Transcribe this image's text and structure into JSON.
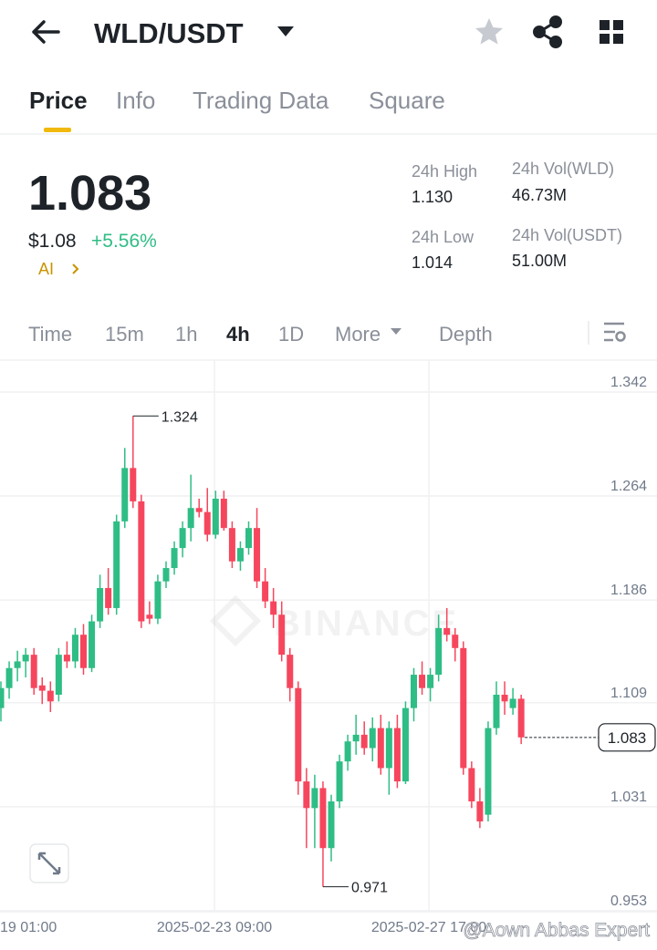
{
  "header": {
    "pair": "WLD/USDT"
  },
  "tabs": [
    "Price",
    "Info",
    "Trading Data",
    "Square"
  ],
  "summary": {
    "price": "1.083",
    "fiat_price": "$1.08",
    "change": "+5.56%",
    "ai": "AI"
  },
  "stats": [
    {
      "label": "24h High",
      "value": "1.130"
    },
    {
      "label": "24h Vol(WLD)",
      "value": "46.73M"
    },
    {
      "label": "24h Low",
      "value": "1.014"
    },
    {
      "label": "24h Vol(USDT)",
      "value": "51.00M"
    }
  ],
  "intervals": [
    "Time",
    "15m",
    "1h",
    "4h",
    "1D",
    "More",
    "Depth"
  ],
  "chart_data": {
    "type": "candlestick",
    "up_color": "#2ebd85",
    "down_color": "#f6465d",
    "open": [
      1.105,
      1.12,
      1.135,
      1.14,
      1.145,
      1.122,
      1.118,
      1.115,
      1.145,
      1.14,
      1.16,
      1.135,
      1.17,
      1.195,
      1.18,
      1.245,
      1.285,
      1.26,
      1.175,
      1.172,
      1.2,
      1.21,
      1.225,
      1.24,
      1.255,
      1.252,
      1.235,
      1.262,
      1.24,
      1.215,
      1.225,
      1.24,
      1.2,
      1.185,
      1.175,
      1.145,
      1.12,
      1.05,
      1.03,
      1.045,
      1.0,
      1.035,
      1.065,
      1.08,
      1.085,
      1.075,
      1.09,
      1.06,
      1.09,
      1.05,
      1.105,
      1.13,
      1.12,
      1.13,
      1.165,
      1.16,
      1.15,
      1.06,
      1.035,
      1.025,
      1.09,
      1.115,
      1.105,
      1.112
    ],
    "high": [
      1.125,
      1.14,
      1.148,
      1.15,
      1.15,
      1.128,
      1.125,
      1.15,
      1.155,
      1.165,
      1.168,
      1.175,
      1.205,
      1.21,
      1.25,
      1.3,
      1.324,
      1.265,
      1.185,
      1.205,
      1.215,
      1.23,
      1.245,
      1.28,
      1.262,
      1.27,
      1.268,
      1.268,
      1.245,
      1.23,
      1.245,
      1.255,
      1.21,
      1.195,
      1.185,
      1.15,
      1.125,
      1.06,
      1.055,
      1.05,
      1.04,
      1.07,
      1.085,
      1.1,
      1.095,
      1.098,
      1.1,
      1.095,
      1.1,
      1.11,
      1.135,
      1.14,
      1.135,
      1.175,
      1.18,
      1.165,
      1.155,
      1.065,
      1.045,
      1.095,
      1.125,
      1.125,
      1.12,
      1.115
    ],
    "low": [
      1.095,
      1.112,
      1.125,
      1.128,
      1.115,
      1.108,
      1.102,
      1.11,
      1.135,
      1.135,
      1.13,
      1.132,
      1.165,
      1.175,
      1.175,
      1.24,
      1.255,
      1.165,
      1.168,
      1.168,
      1.195,
      1.205,
      1.218,
      1.23,
      1.248,
      1.23,
      1.232,
      1.238,
      1.21,
      1.208,
      1.22,
      1.195,
      1.18,
      1.165,
      1.14,
      1.11,
      1.04,
      1.0,
      1.0,
      0.971,
      0.99,
      1.03,
      1.058,
      1.07,
      1.07,
      1.065,
      1.055,
      1.04,
      1.045,
      1.048,
      1.095,
      1.115,
      1.11,
      1.125,
      1.155,
      1.14,
      1.055,
      1.03,
      1.015,
      1.02,
      1.085,
      1.1,
      1.1,
      1.078
    ],
    "close": [
      1.12,
      1.135,
      1.14,
      1.145,
      1.12,
      1.118,
      1.11,
      1.145,
      1.14,
      1.16,
      1.135,
      1.17,
      1.195,
      1.18,
      1.245,
      1.285,
      1.26,
      1.17,
      1.172,
      1.2,
      1.21,
      1.225,
      1.24,
      1.255,
      1.252,
      1.235,
      1.262,
      1.24,
      1.215,
      1.225,
      1.24,
      1.2,
      1.185,
      1.175,
      1.145,
      1.12,
      1.05,
      1.03,
      1.045,
      1.0,
      1.035,
      1.065,
      1.08,
      1.085,
      1.075,
      1.09,
      1.06,
      1.09,
      1.05,
      1.105,
      1.13,
      1.12,
      1.13,
      1.165,
      1.16,
      1.15,
      1.06,
      1.035,
      1.02,
      1.09,
      1.115,
      1.11,
      1.112,
      1.083
    ],
    "ylim": [
      0.9523,
      1.3659
    ],
    "yticks": [
      1.342,
      1.264,
      1.186,
      1.109,
      1.031,
      0.953
    ],
    "xtick_labels": [
      "19 01:00",
      "2025-02-23 09:00",
      "2025-02-27 17:00"
    ],
    "high_label": 1.324,
    "low_label": 0.971,
    "last_price": 1.083,
    "grid": true
  },
  "watermarks": [
    "BINANCE",
    "@Aown Abbas Expert"
  ]
}
